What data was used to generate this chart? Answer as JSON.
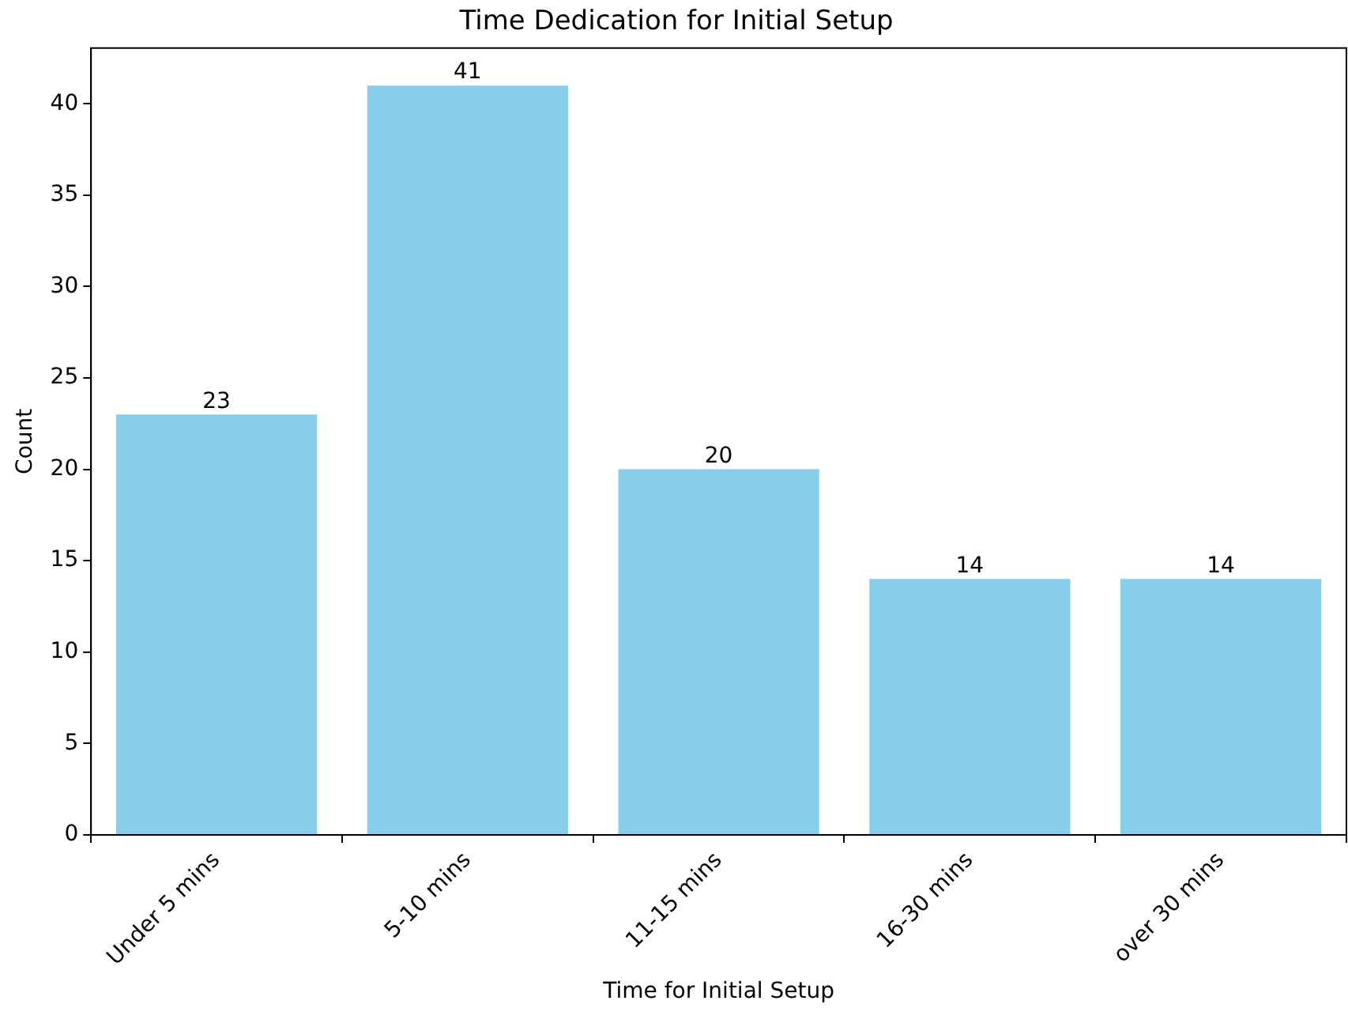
{
  "chart_data": {
    "type": "bar",
    "title": "Time Dedication for Initial Setup",
    "xlabel": "Time for Initial Setup",
    "ylabel": "Count",
    "categories": [
      "Under 5 mins",
      "5-10 mins",
      "11-15 mins",
      "16-30 mins",
      "over 30 mins"
    ],
    "values": [
      23,
      41,
      20,
      14,
      14
    ],
    "color": "#87ceeb",
    "ylim": [
      0,
      43.05
    ],
    "yticks": [
      0,
      5,
      10,
      15,
      20,
      25,
      30,
      35,
      40
    ],
    "data_labels": true
  }
}
